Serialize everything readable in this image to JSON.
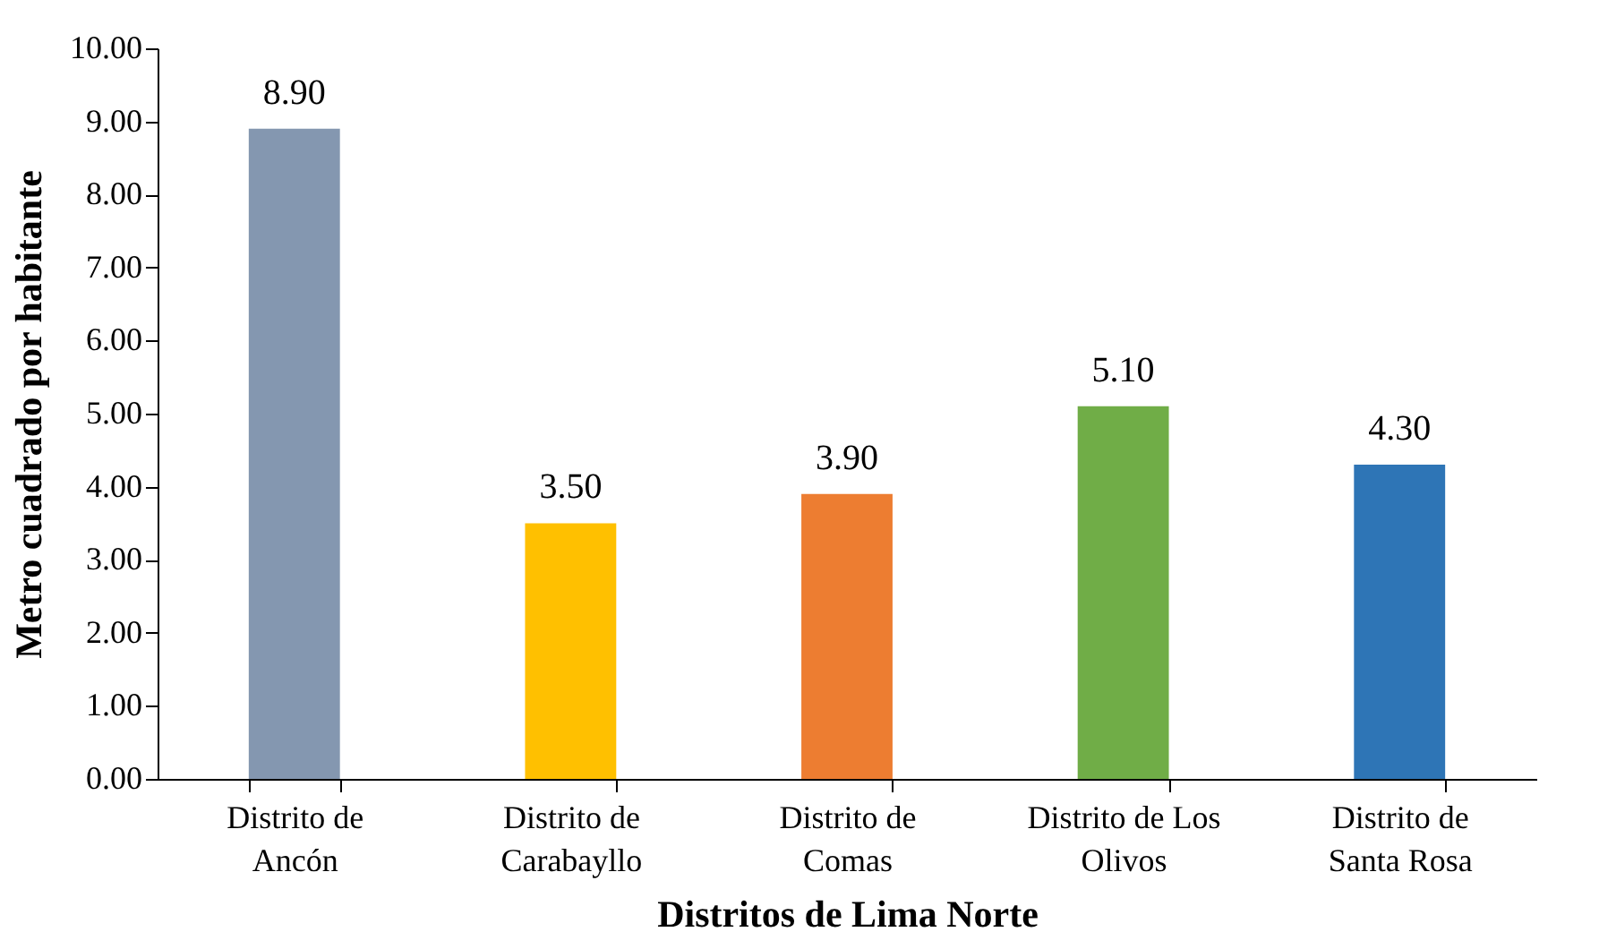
{
  "chart_data": {
    "type": "bar",
    "xlabel": "Distritos de Lima Norte",
    "ylabel": "Metro cuadrado por habitante",
    "categories": [
      "Distrito de Ancón",
      "Distrito de Carabayllo",
      "Distrito de Comas",
      "Distrito de Los Olivos",
      "Distrito de Santa Rosa"
    ],
    "values": [
      8.9,
      3.5,
      3.9,
      5.1,
      4.3
    ],
    "colors": [
      "#8497b0",
      "#ffc000",
      "#ed7d31",
      "#70ad47",
      "#2e75b6"
    ],
    "value_labels": [
      "8.90",
      "3.50",
      "3.90",
      "5.10",
      "4.30"
    ],
    "ylim": [
      0,
      10
    ],
    "yticks": [
      {
        "value": 0,
        "label": "0.00"
      },
      {
        "value": 1,
        "label": "1.00"
      },
      {
        "value": 2,
        "label": "2.00"
      },
      {
        "value": 3,
        "label": "3.00"
      },
      {
        "value": 4,
        "label": "4.00"
      },
      {
        "value": 5,
        "label": "5.00"
      },
      {
        "value": 6,
        "label": "6.00"
      },
      {
        "value": 7,
        "label": "7.00"
      },
      {
        "value": 8,
        "label": "8.00"
      },
      {
        "value": 9,
        "label": "9.00"
      },
      {
        "value": 10,
        "label": "10.00"
      }
    ],
    "grid": false
  }
}
